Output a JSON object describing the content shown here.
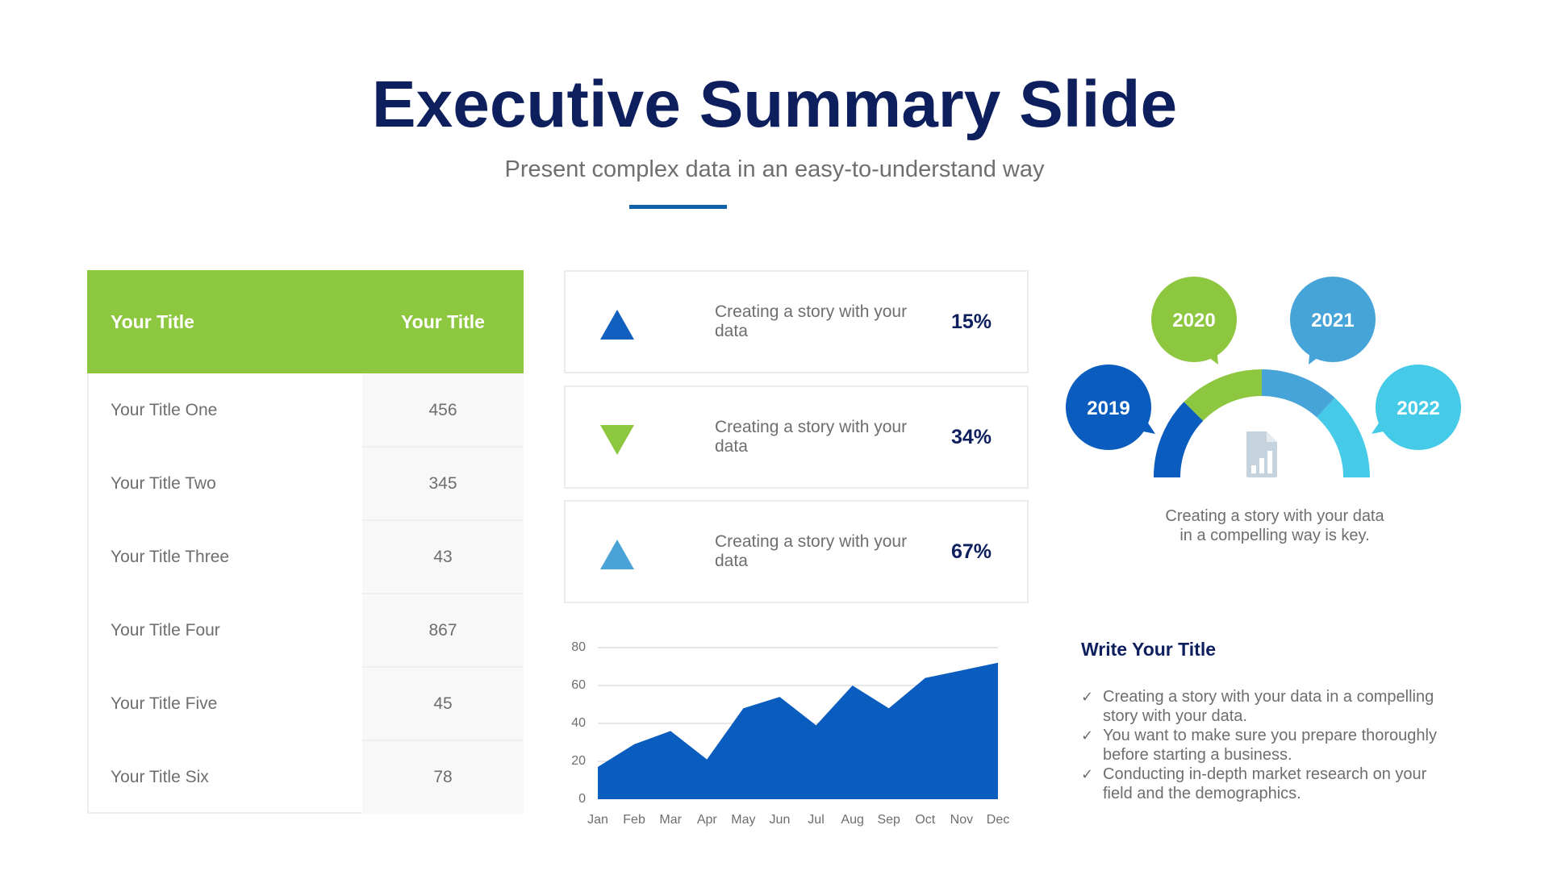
{
  "header": {
    "title": "Executive Summary Slide",
    "subtitle": "Present complex data in an easy-to-understand way",
    "accent_color": "#1160aa"
  },
  "table": {
    "header_color": "#8dc63f",
    "columns": [
      "Your Title",
      "Your Title"
    ],
    "rows": [
      {
        "label": "Your Title One",
        "value": "456"
      },
      {
        "label": "Your Title Two",
        "value": "345"
      },
      {
        "label": "Your Title Three",
        "value": "43"
      },
      {
        "label": "Your Title Four",
        "value": "867"
      },
      {
        "label": "Your Title Five",
        "value": "45"
      },
      {
        "label": "Your Title Six",
        "value": "78"
      }
    ]
  },
  "stats": [
    {
      "icon": "triangle-up-icon",
      "color": "#1160c0",
      "text": "Creating a story with your data",
      "value": "15%"
    },
    {
      "icon": "triangle-down-icon",
      "color": "#8dc63f",
      "text": "Creating a story with your data",
      "value": "34%"
    },
    {
      "icon": "triangle-up-icon",
      "color": "#4aa3d6",
      "text": "Creating a story with your data",
      "value": "67%"
    }
  ],
  "gauge": {
    "segments": [
      {
        "label": "2019",
        "color": "#0b5cbf"
      },
      {
        "label": "2020",
        "color": "#8dc63f"
      },
      {
        "label": "2021",
        "color": "#46a4d8"
      },
      {
        "label": "2022",
        "color": "#45cbe8"
      }
    ],
    "center_icon": "document-chart-icon",
    "caption_line1": "Creating a story with your data",
    "caption_line2": "in a compelling way is key."
  },
  "notes": {
    "title": "Write Your Title",
    "bullets": [
      "Creating a story with your data in a compelling story with your data.",
      "You want to make sure you prepare thoroughly before starting a business.",
      "Conducting in-depth market research on your field and the demographics."
    ]
  },
  "chart_data": {
    "type": "area",
    "title": "",
    "xlabel": "",
    "ylabel": "",
    "categories": [
      "Jan",
      "Feb",
      "Mar",
      "Apr",
      "May",
      "Jun",
      "Jul",
      "Aug",
      "Sep",
      "Oct",
      "Nov",
      "Dec"
    ],
    "values": [
      17,
      29,
      36,
      21,
      48,
      54,
      39,
      60,
      48,
      64,
      68,
      72
    ],
    "ylim": [
      0,
      80
    ],
    "yticks": [
      0,
      20,
      40,
      60,
      80
    ],
    "grid": true,
    "legend": false,
    "color": "#0b5cbf"
  }
}
